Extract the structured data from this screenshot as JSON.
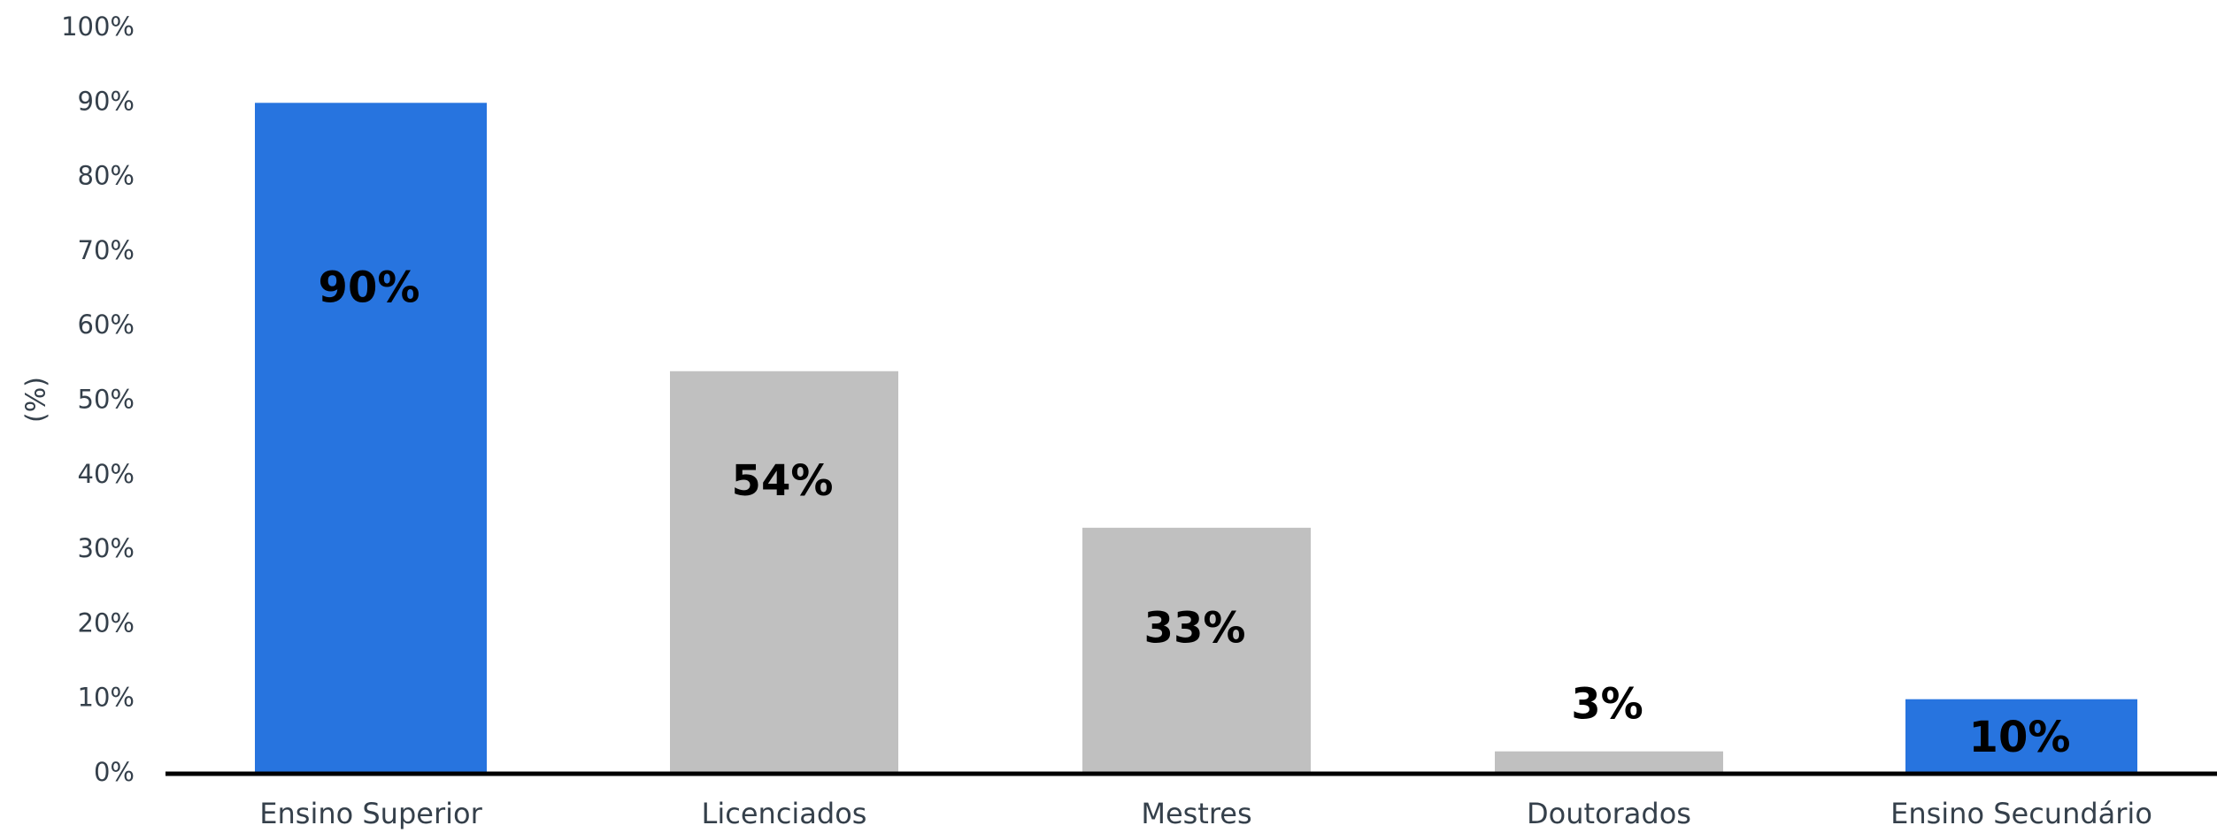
{
  "chart_data": {
    "type": "bar",
    "categories": [
      "Ensino Superior",
      "Licenciados",
      "Mestres",
      "Doutorados",
      "Ensino Secundário"
    ],
    "values": [
      90,
      54,
      33,
      3,
      10
    ],
    "data_labels": [
      "90%",
      "54%",
      "33%",
      "3%",
      "10%"
    ],
    "bar_colors": [
      "#2774df",
      "#c0c0c0",
      "#c0c0c0",
      "#c0c0c0",
      "#2774df"
    ],
    "ylabel": "(%)",
    "ylim": [
      0,
      100
    ],
    "yticks": [
      "0%",
      "10%",
      "20%",
      "30%",
      "40%",
      "50%",
      "60%",
      "70%",
      "80%",
      "90%",
      "100%"
    ],
    "grid": false,
    "legend": "none"
  }
}
